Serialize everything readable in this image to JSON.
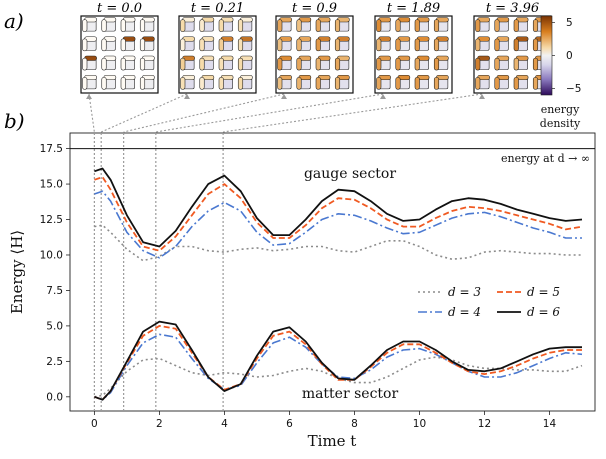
{
  "panels": {
    "a": "a)",
    "b": "b)"
  },
  "snapshots": {
    "labels": [
      "t = 0.0",
      "t = 0.21",
      "t = 0.9",
      "t = 1.89",
      "t = 3.96"
    ],
    "times": [
      0.0,
      0.21,
      0.9,
      1.89,
      3.96
    ],
    "levels": [
      {
        "h": [
          0.05,
          0.05,
          0.05,
          0.05,
          0.05,
          0.05,
          0.9,
          0.9,
          0.9,
          0.05,
          0.05,
          0.05,
          0.05,
          0.05,
          0.05,
          0.05
        ],
        "v": [
          0.05,
          0.05,
          0.05,
          0.05,
          0.05,
          0.05,
          0.05,
          0.05,
          0.05,
          0.05,
          0.05,
          0.05,
          0.05,
          0.05,
          0.05,
          0.05
        ],
        "p": -0.05
      },
      {
        "h": [
          0.15,
          0.35,
          0.3,
          0.15,
          0.35,
          0.3,
          0.7,
          0.75,
          0.7,
          0.3,
          0.35,
          0.3,
          0.15,
          0.35,
          0.3,
          0.15
        ],
        "v": [
          0.35,
          0.2,
          0.35,
          0.3,
          0.15,
          0.3,
          0.4,
          0.3,
          0.4,
          0.35,
          0.3,
          0.35,
          0.3,
          0.2,
          0.3,
          0.35
        ],
        "p": -0.25
      },
      {
        "h": [
          0.55,
          0.6,
          0.55,
          0.5,
          0.6,
          0.55,
          0.7,
          0.7,
          0.65,
          0.55,
          0.6,
          0.5,
          0.55,
          0.6,
          0.55,
          0.6
        ],
        "v": [
          0.55,
          0.45,
          0.55,
          0.5,
          0.45,
          0.5,
          0.6,
          0.5,
          0.6,
          0.55,
          0.5,
          0.55,
          0.45,
          0.5,
          0.55,
          0.5
        ],
        "p": -0.2
      },
      {
        "h": [
          0.6,
          0.65,
          0.6,
          0.55,
          0.7,
          0.6,
          0.65,
          0.7,
          0.6,
          0.6,
          0.65,
          0.55,
          0.6,
          0.65,
          0.6,
          0.55
        ],
        "v": [
          0.65,
          0.55,
          0.6,
          0.55,
          0.5,
          0.6,
          0.6,
          0.55,
          0.6,
          0.6,
          0.55,
          0.6,
          0.55,
          0.6,
          0.6,
          0.55
        ],
        "p": -0.15
      },
      {
        "h": [
          0.55,
          0.6,
          0.55,
          0.6,
          0.65,
          0.55,
          0.85,
          0.8,
          0.85,
          0.55,
          0.6,
          0.6,
          0.55,
          0.6,
          0.55,
          0.6
        ],
        "v": [
          0.6,
          0.55,
          0.6,
          0.55,
          0.5,
          0.6,
          0.7,
          0.6,
          0.7,
          0.55,
          0.5,
          0.6,
          0.55,
          0.6,
          0.6,
          0.55
        ],
        "p": -0.2
      }
    ]
  },
  "colorbar": {
    "ticks": [
      "5",
      "0",
      "−5"
    ],
    "values": [
      5,
      0,
      -5
    ],
    "range": [
      -6,
      6
    ],
    "label_line1": "energy",
    "label_line2": "density",
    "colors": {
      "neg": "#3b0f70",
      "mid": "#f2f2f2",
      "pos": "#a14a0c"
    }
  },
  "chart_data": {
    "type": "line",
    "xlabel": "Time t",
    "ylabel": "Energy ⟨H⟩",
    "xlim": [
      -0.75,
      15.4
    ],
    "ylim": [
      -1.0,
      18.6
    ],
    "xticks": [
      0,
      2,
      4,
      6,
      8,
      10,
      12,
      14
    ],
    "yticks": [
      0.0,
      2.5,
      5.0,
      7.5,
      10.0,
      12.5,
      15.0,
      17.5
    ],
    "ytick_labels": [
      "0.0",
      "2.5",
      "5.0",
      "7.5",
      "10.0",
      "12.5",
      "15.0",
      "17.5"
    ],
    "grid": false,
    "legend_position": "center-right",
    "hline": {
      "y": 17.5,
      "label": "energy at d → ∞"
    },
    "vlines": [
      0.0,
      0.21,
      0.9,
      1.89,
      3.96
    ],
    "annotations": {
      "gauge": "gauge sector",
      "matter": "matter sector"
    },
    "legend": [
      {
        "label": "d = 3",
        "series": "d3"
      },
      {
        "label": "d = 5",
        "series": "d5"
      },
      {
        "label": "d = 4",
        "series": "d4"
      },
      {
        "label": "d = 6",
        "series": "d6"
      }
    ],
    "x": [
      0,
      0.25,
      0.5,
      1.0,
      1.5,
      2.0,
      2.5,
      3.0,
      3.5,
      4.0,
      4.5,
      5.0,
      5.5,
      6.0,
      6.5,
      7.0,
      7.5,
      8.0,
      8.5,
      9.0,
      9.5,
      10.0,
      10.5,
      11.0,
      11.5,
      12.0,
      12.5,
      13.0,
      13.5,
      14.0,
      14.5,
      15.0
    ],
    "series": [
      {
        "name": "d = 3",
        "key": "d3",
        "color": "#8c8c8c",
        "dash": "2,3",
        "width": 1.6,
        "gauge": [
          12.0,
          12.1,
          11.6,
          10.4,
          9.6,
          9.9,
          10.6,
          10.6,
          10.3,
          10.2,
          10.4,
          10.5,
          10.3,
          10.4,
          10.6,
          10.6,
          10.3,
          10.2,
          10.6,
          11.0,
          11.0,
          10.6,
          10.0,
          9.7,
          9.8,
          10.2,
          10.3,
          10.2,
          10.1,
          10.1,
          10.0,
          10.0
        ],
        "matter": [
          0.0,
          0.1,
          0.6,
          1.8,
          2.6,
          2.7,
          2.2,
          1.7,
          1.5,
          1.7,
          1.6,
          1.4,
          1.5,
          1.8,
          2.0,
          1.8,
          1.3,
          1.0,
          1.0,
          1.4,
          2.0,
          2.6,
          2.8,
          2.6,
          2.2,
          2.0,
          2.0,
          1.9,
          1.9,
          1.8,
          1.8,
          2.2
        ]
      },
      {
        "name": "d = 4",
        "key": "d4",
        "color": "#4a78d0",
        "dash": "9,3,2,3",
        "width": 1.6,
        "gauge": [
          14.3,
          14.5,
          13.8,
          11.6,
          10.3,
          9.8,
          10.6,
          12.0,
          13.1,
          13.7,
          13.1,
          11.6,
          10.7,
          10.8,
          11.6,
          12.5,
          12.9,
          12.8,
          12.4,
          11.9,
          11.5,
          11.6,
          12.1,
          12.6,
          12.9,
          13.0,
          12.7,
          12.3,
          11.9,
          11.6,
          11.2,
          11.2
        ],
        "matter": [
          0.0,
          -0.2,
          0.3,
          2.2,
          3.8,
          4.4,
          4.2,
          2.7,
          1.3,
          0.5,
          0.8,
          2.4,
          3.8,
          4.2,
          3.5,
          2.3,
          1.4,
          1.3,
          1.9,
          2.8,
          3.3,
          3.4,
          3.0,
          2.4,
          1.8,
          1.4,
          1.4,
          1.7,
          2.2,
          2.7,
          3.1,
          3.0
        ]
      },
      {
        "name": "d = 5",
        "key": "d5",
        "color": "#f05a22",
        "dash": "6,3",
        "width": 1.8,
        "gauge": [
          15.3,
          15.5,
          14.6,
          12.3,
          10.6,
          10.3,
          11.3,
          12.8,
          14.3,
          15.0,
          14.0,
          12.3,
          11.2,
          11.2,
          12.1,
          13.3,
          14.0,
          13.9,
          13.3,
          12.5,
          12.0,
          12.0,
          12.6,
          13.1,
          13.4,
          13.3,
          13.1,
          12.8,
          12.5,
          12.2,
          11.8,
          12.0
        ],
        "matter": [
          0.0,
          -0.2,
          0.4,
          2.4,
          4.3,
          5.0,
          4.8,
          3.1,
          1.4,
          0.5,
          0.9,
          2.7,
          4.3,
          4.6,
          3.7,
          2.3,
          1.2,
          1.2,
          2.1,
          3.1,
          3.7,
          3.7,
          3.1,
          2.4,
          1.8,
          1.6,
          1.8,
          2.2,
          2.7,
          3.1,
          3.3,
          3.3
        ]
      },
      {
        "name": "d = 6",
        "key": "d6",
        "color": "#111111",
        "dash": "",
        "width": 1.8,
        "gauge": [
          15.9,
          16.1,
          15.3,
          12.8,
          10.9,
          10.6,
          11.7,
          13.4,
          15.0,
          15.6,
          14.5,
          12.6,
          11.4,
          11.4,
          12.5,
          13.8,
          14.6,
          14.5,
          13.8,
          12.9,
          12.4,
          12.5,
          13.2,
          13.8,
          14.0,
          13.9,
          13.6,
          13.2,
          12.9,
          12.6,
          12.4,
          12.5
        ],
        "matter": [
          0.0,
          -0.2,
          0.4,
          2.5,
          4.6,
          5.3,
          5.1,
          3.3,
          1.4,
          0.4,
          0.9,
          2.9,
          4.6,
          4.9,
          3.9,
          2.4,
          1.3,
          1.2,
          2.2,
          3.3,
          3.9,
          3.9,
          3.3,
          2.5,
          1.9,
          1.8,
          2.0,
          2.5,
          3.0,
          3.4,
          3.5,
          3.5
        ]
      }
    ]
  }
}
